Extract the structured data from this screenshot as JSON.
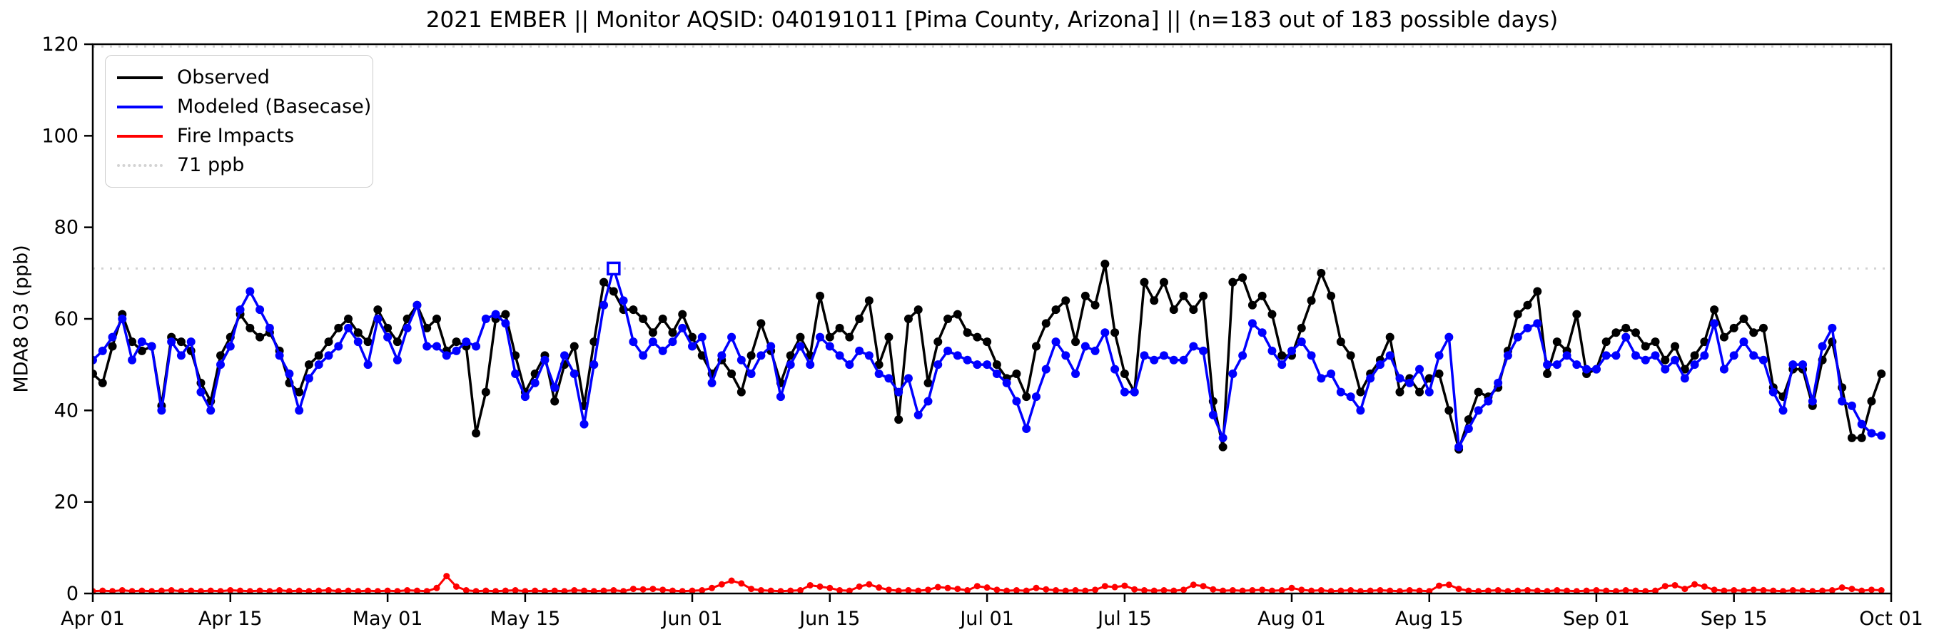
{
  "chart_data": {
    "type": "line",
    "title": "2021 EMBER || Monitor AQSID: 040191011 [Pima County, Arizona] || (n=183 out of 183 possible days)",
    "xlabel": "",
    "ylabel": "MDA8 O3 (ppb)",
    "ylim": [
      0,
      120
    ],
    "yticks": [
      "0",
      "20",
      "40",
      "60",
      "80",
      "100",
      "120"
    ],
    "ytick_values": [
      0,
      20,
      40,
      60,
      80,
      100,
      120
    ],
    "x_axis_days_total": 183,
    "x_start_label": "Apr 01",
    "x_end_label": "Oct 01",
    "xticks": [
      {
        "label": "Apr 01",
        "day": 0
      },
      {
        "label": "Apr 15",
        "day": 14
      },
      {
        "label": "May 01",
        "day": 30
      },
      {
        "label": "May 15",
        "day": 44
      },
      {
        "label": "Jun 01",
        "day": 61
      },
      {
        "label": "Jun 15",
        "day": 75
      },
      {
        "label": "Jul 01",
        "day": 91
      },
      {
        "label": "Jul 15",
        "day": 105
      },
      {
        "label": "Aug 01",
        "day": 122
      },
      {
        "label": "Aug 15",
        "day": 136
      },
      {
        "label": "Sep 01",
        "day": 153
      },
      {
        "label": "Sep 15",
        "day": 167
      },
      {
        "label": "Oct 01",
        "day": 183
      }
    ],
    "grid": false,
    "legend_position": "upper left",
    "reference_lines": [
      {
        "label": "71 ppb",
        "value": 71,
        "color": "#d3d3d3",
        "style": "dotted"
      },
      {
        "label": "",
        "value": 119.5,
        "color": "#d3d3d3",
        "style": "dotted"
      }
    ],
    "exceedance_marker": {
      "series": "Modeled (Basecase)",
      "day_index": 53,
      "value": 71,
      "marker": "open-square"
    },
    "legend": {
      "items": [
        {
          "label": "Observed",
          "color": "#000000",
          "style": "solid"
        },
        {
          "label": "Modeled (Basecase)",
          "color": "#0000ff",
          "style": "solid"
        },
        {
          "label": "Fire Impacts",
          "color": "#ff0000",
          "style": "solid"
        },
        {
          "label": "71 ppb",
          "color": "#d3d3d3",
          "style": "dotted"
        }
      ]
    },
    "series": [
      {
        "name": "Observed",
        "color": "#000000",
        "marker_radius": 6,
        "line_width": 3.5,
        "values": [
          48,
          46,
          54,
          61,
          55,
          53,
          54,
          41,
          56,
          55,
          53,
          46,
          42,
          52,
          56,
          61,
          58,
          56,
          57,
          53,
          46,
          44,
          50,
          52,
          55,
          58,
          60,
          57,
          55,
          62,
          58,
          55,
          60,
          63,
          58,
          60,
          53,
          55,
          54,
          35,
          44,
          60,
          61,
          52,
          44,
          48,
          52,
          42,
          50,
          54,
          41,
          55,
          68,
          66,
          62,
          62,
          60,
          57,
          60,
          57,
          61,
          56,
          52,
          48,
          51,
          48,
          44,
          52,
          59,
          53,
          46,
          52,
          56,
          52,
          65,
          56,
          58,
          56,
          60,
          64,
          50,
          56,
          38,
          60,
          62,
          46,
          55,
          60,
          61,
          57,
          56,
          55,
          50,
          47,
          48,
          43,
          54,
          59,
          62,
          64,
          55,
          65,
          63,
          72,
          57,
          48,
          44,
          68,
          64,
          68,
          62,
          65,
          62,
          65,
          42,
          32,
          68,
          69,
          63,
          65,
          61,
          52,
          52,
          58,
          64,
          70,
          65,
          55,
          52,
          44,
          48,
          51,
          56,
          44,
          47,
          44,
          47,
          48,
          40,
          31.5,
          38,
          44,
          43,
          45,
          53,
          61,
          63,
          66,
          48,
          55,
          53,
          61,
          48,
          49,
          55,
          57,
          58,
          57,
          54,
          55,
          51,
          54,
          49,
          52,
          55,
          62,
          56,
          58,
          60,
          57,
          58,
          45,
          43,
          49,
          49,
          41,
          51,
          55,
          45,
          34,
          34,
          42,
          48
        ]
      },
      {
        "name": "Modeled (Basecase)",
        "color": "#0000ff",
        "marker_radius": 6,
        "line_width": 3.5,
        "values": [
          51,
          53,
          56,
          60,
          51,
          55,
          54,
          40,
          55,
          52,
          55,
          44,
          40,
          50,
          54,
          62,
          66,
          62,
          58,
          52,
          48,
          40,
          47,
          50,
          52,
          54,
          58,
          55,
          50,
          60,
          56,
          51,
          58,
          63,
          54,
          54,
          52,
          53,
          55,
          54,
          60,
          61,
          59,
          48,
          43,
          46,
          51,
          45,
          52,
          48,
          37,
          50,
          63,
          71,
          64,
          55,
          52,
          55,
          53,
          55,
          58,
          54,
          56,
          46,
          52,
          56,
          51,
          48,
          52,
          54,
          43,
          50,
          54,
          50,
          56,
          54,
          52,
          50,
          53,
          52,
          48,
          47,
          44,
          47,
          39,
          42,
          50,
          53,
          52,
          51,
          50,
          50,
          48,
          46,
          42,
          36,
          43,
          49,
          55,
          52,
          48,
          54,
          53,
          57,
          49,
          44,
          44,
          52,
          51,
          52,
          51,
          51,
          54,
          53,
          39,
          34,
          48,
          52,
          59,
          57,
          53,
          50,
          53,
          55,
          52,
          47,
          48,
          44,
          43,
          40,
          47,
          50,
          52,
          47,
          46,
          49,
          44,
          52,
          56,
          32,
          36,
          40,
          42,
          46,
          52,
          56,
          58,
          59,
          50,
          50,
          52,
          50,
          49,
          49,
          52,
          52,
          56,
          52,
          51,
          52,
          49,
          51,
          47,
          50,
          52,
          59,
          49,
          52,
          55,
          52,
          51,
          44,
          40,
          50,
          50,
          42,
          54,
          58,
          42,
          41,
          37,
          35,
          34.5
        ]
      },
      {
        "name": "Fire Impacts",
        "color": "#ff0000",
        "marker_radius": 4.5,
        "line_width": 3,
        "values": [
          0.5,
          0.6,
          0.5,
          0.7,
          0.5,
          0.6,
          0.5,
          0.6,
          0.7,
          0.5,
          0.6,
          0.5,
          0.6,
          0.5,
          0.7,
          0.6,
          0.5,
          0.6,
          0.5,
          0.7,
          0.5,
          0.6,
          0.5,
          0.6,
          0.7,
          0.5,
          0.6,
          0.5,
          0.6,
          0.5,
          0.6,
          0.5,
          0.7,
          0.6,
          0.5,
          1.2,
          3.8,
          1.5,
          0.7,
          0.5,
          0.6,
          0.5,
          0.6,
          0.7,
          0.5,
          0.6,
          0.5,
          0.6,
          0.5,
          0.7,
          0.6,
          0.5,
          0.6,
          0.7,
          0.5,
          1.0,
          0.9,
          1.0,
          0.8,
          0.6,
          0.5,
          0.6,
          0.7,
          1.2,
          2.0,
          2.8,
          2.2,
          1.0,
          0.7,
          0.6,
          0.5,
          0.6,
          0.7,
          1.8,
          1.5,
          1.2,
          0.7,
          0.6,
          1.5,
          2.0,
          1.3,
          0.8,
          0.6,
          0.7,
          0.6,
          0.8,
          1.4,
          1.2,
          1.0,
          0.7,
          1.6,
          1.3,
          0.8,
          0.6,
          0.7,
          0.6,
          1.2,
          0.9,
          0.7,
          0.6,
          0.7,
          0.6,
          0.8,
          1.6,
          1.4,
          1.7,
          0.9,
          0.7,
          0.6,
          0.7,
          0.6,
          0.8,
          1.9,
          1.6,
          0.9,
          0.6,
          0.7,
          0.6,
          0.7,
          0.8,
          0.6,
          0.7,
          1.2,
          0.8,
          0.6,
          0.7,
          0.5,
          0.6,
          0.7,
          0.5,
          0.6,
          0.7,
          0.6,
          0.5,
          0.7,
          0.6,
          0.5,
          1.7,
          1.9,
          1.0,
          0.6,
          0.5,
          0.6,
          0.7,
          0.5,
          0.6,
          0.7,
          0.6,
          0.5,
          0.7,
          0.6,
          0.5,
          0.6,
          0.7,
          0.6,
          0.5,
          0.7,
          0.6,
          0.5,
          0.6,
          1.6,
          1.8,
          1.0,
          2.0,
          1.5,
          0.8,
          0.6,
          0.7,
          0.6,
          0.8,
          0.7,
          0.6,
          0.5,
          0.7,
          0.6,
          0.5,
          0.6,
          0.7,
          1.3,
          1.0,
          0.6,
          0.8,
          0.7
        ]
      }
    ]
  }
}
